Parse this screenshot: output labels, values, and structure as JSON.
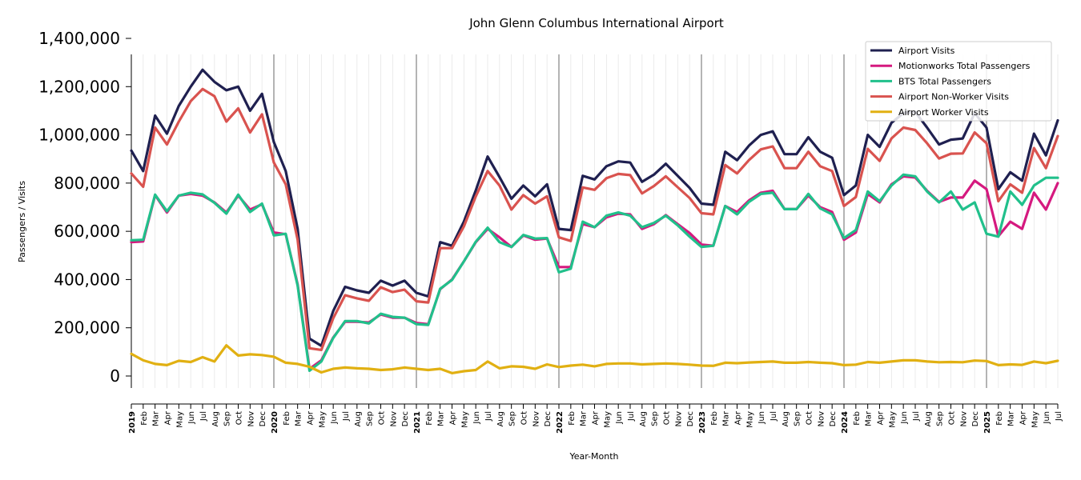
{
  "chart_data": {
    "type": "line",
    "title": "John Glenn Columbus International Airport",
    "xlabel": "Year-Month",
    "ylabel": "Passengers / Visits",
    "ylim": [
      -50000,
      1400000
    ],
    "yticks": [
      0,
      200000,
      400000,
      600000,
      800000,
      1000000,
      1200000,
      1400000
    ],
    "ytick_labels": [
      "0",
      "200,000",
      "400,000",
      "600,000",
      "800,000",
      "1,000,000",
      "1,200,000",
      "1,400,000"
    ],
    "x": [
      "2019",
      "Feb",
      "Mar",
      "Apr",
      "May",
      "Jun",
      "Jul",
      "Aug",
      "Sep",
      "Oct",
      "Nov",
      "Dec",
      "2020",
      "Feb",
      "Mar",
      "Apr",
      "May",
      "Jun",
      "Jul",
      "Aug",
      "Sep",
      "Oct",
      "Nov",
      "Dec",
      "2021",
      "Feb",
      "Mar",
      "Apr",
      "May",
      "Jun",
      "Jul",
      "Aug",
      "Sep",
      "Oct",
      "Nov",
      "Dec",
      "2022",
      "Feb",
      "Mar",
      "Apr",
      "May",
      "Jun",
      "Jul",
      "Aug",
      "Sep",
      "Oct",
      "Nov",
      "Dec",
      "2023",
      "Feb",
      "Mar",
      "Apr",
      "May",
      "Jun",
      "Jul",
      "Aug",
      "Sep",
      "Oct",
      "Nov",
      "Dec",
      "2024",
      "Feb",
      "Mar",
      "Apr",
      "May",
      "Jun",
      "Jul",
      "Aug",
      "Sep",
      "Oct",
      "Nov",
      "Dec",
      "2025",
      "Feb",
      "Mar",
      "Apr",
      "May",
      "Jun",
      "Jul"
    ],
    "year_ticks": [
      "2019",
      "2020",
      "2021",
      "2022",
      "2023",
      "2024",
      "2025"
    ],
    "grid": "vertical",
    "legend_position": "top-right",
    "series": [
      {
        "name": "Airport Visits",
        "color": "#1f2050",
        "values": [
          935000,
          850000,
          1080000,
          1005000,
          1120000,
          1200000,
          1270000,
          1220000,
          1185000,
          1200000,
          1100000,
          1170000,
          970000,
          850000,
          610000,
          155000,
          125000,
          270000,
          370000,
          355000,
          345000,
          395000,
          375000,
          395000,
          345000,
          330000,
          555000,
          540000,
          640000,
          770000,
          910000,
          825000,
          735000,
          790000,
          745000,
          795000,
          610000,
          605000,
          830000,
          815000,
          870000,
          890000,
          885000,
          805000,
          835000,
          880000,
          830000,
          780000,
          715000,
          710000,
          930000,
          895000,
          955000,
          1000000,
          1015000,
          920000,
          920000,
          990000,
          930000,
          905000,
          750000,
          790000,
          1000000,
          950000,
          1050000,
          1090000,
          1095000,
          1030000,
          960000,
          980000,
          985000,
          1090000,
          1030000,
          775000,
          845000,
          810000,
          1005000,
          915000,
          1060000
        ]
      },
      {
        "name": "Motionworks Total Passengers",
        "color": "#d5197f",
        "values": [
          555000,
          558000,
          750000,
          678000,
          748000,
          755000,
          748000,
          720000,
          678000,
          748000,
          690000,
          712000,
          595000,
          588000,
          380000,
          30000,
          65000,
          160000,
          225000,
          225000,
          222000,
          255000,
          242000,
          242000,
          220000,
          215000,
          360000,
          400000,
          475000,
          555000,
          610000,
          575000,
          535000,
          583000,
          565000,
          570000,
          452000,
          452000,
          630000,
          617000,
          658000,
          673000,
          670000,
          610000,
          630000,
          667000,
          630000,
          593000,
          545000,
          540000,
          705000,
          680000,
          728000,
          760000,
          768000,
          692000,
          692000,
          748000,
          700000,
          680000,
          565000,
          595000,
          755000,
          720000,
          795000,
          828000,
          823000,
          768000,
          722000,
          740000,
          740000,
          810000,
          775000,
          580000,
          640000,
          610000,
          760000,
          690000,
          800000
        ]
      },
      {
        "name": "BTS Total Passengers",
        "color": "#21c08b",
        "values": [
          563000,
          565000,
          752000,
          683000,
          748000,
          760000,
          753000,
          718000,
          673000,
          752000,
          680000,
          715000,
          583000,
          590000,
          375000,
          22000,
          60000,
          158000,
          228000,
          228000,
          218000,
          258000,
          245000,
          242000,
          215000,
          212000,
          362000,
          398000,
          475000,
          557000,
          615000,
          555000,
          535000,
          585000,
          570000,
          572000,
          430000,
          445000,
          640000,
          617000,
          665000,
          678000,
          665000,
          617000,
          635000,
          665000,
          625000,
          578000,
          535000,
          540000,
          705000,
          670000,
          722000,
          755000,
          760000,
          692000,
          692000,
          755000,
          695000,
          670000,
          572000,
          605000,
          765000,
          725000,
          790000,
          835000,
          828000,
          765000,
          720000,
          765000,
          690000,
          720000,
          590000,
          578000,
          765000,
          710000,
          790000,
          822000,
          822000
        ]
      },
      {
        "name": "Airport Non-Worker Visits",
        "color": "#d9534f",
        "values": [
          840000,
          785000,
          1030000,
          960000,
          1055000,
          1140000,
          1190000,
          1160000,
          1055000,
          1110000,
          1010000,
          1085000,
          885000,
          795000,
          565000,
          115000,
          108000,
          240000,
          335000,
          322000,
          312000,
          368000,
          348000,
          358000,
          310000,
          305000,
          530000,
          530000,
          620000,
          745000,
          850000,
          790000,
          690000,
          750000,
          715000,
          745000,
          575000,
          560000,
          782000,
          772000,
          820000,
          838000,
          833000,
          757000,
          788000,
          828000,
          783000,
          738000,
          675000,
          670000,
          875000,
          840000,
          895000,
          940000,
          952000,
          862000,
          862000,
          930000,
          870000,
          850000,
          705000,
          742000,
          942000,
          892000,
          985000,
          1030000,
          1020000,
          965000,
          902000,
          922000,
          923000,
          1010000,
          965000,
          725000,
          795000,
          760000,
          945000,
          862000,
          995000
        ]
      },
      {
        "name": "Airport Worker Visits",
        "color": "#e1b012",
        "values": [
          92000,
          65000,
          50000,
          45000,
          63000,
          58000,
          78000,
          60000,
          127000,
          85000,
          90000,
          87000,
          80000,
          55000,
          50000,
          38000,
          15000,
          30000,
          35000,
          32000,
          30000,
          25000,
          28000,
          35000,
          30000,
          25000,
          30000,
          12000,
          20000,
          25000,
          60000,
          32000,
          40000,
          38000,
          30000,
          48000,
          37000,
          43000,
          47000,
          40000,
          50000,
          52000,
          52000,
          48000,
          50000,
          52000,
          50000,
          47000,
          43000,
          42000,
          55000,
          53000,
          56000,
          58000,
          60000,
          55000,
          55000,
          58000,
          55000,
          53000,
          45000,
          47000,
          58000,
          55000,
          60000,
          65000,
          65000,
          60000,
          57000,
          58000,
          57000,
          64000,
          62000,
          45000,
          48000,
          46000,
          60000,
          53000,
          63000
        ]
      }
    ]
  }
}
